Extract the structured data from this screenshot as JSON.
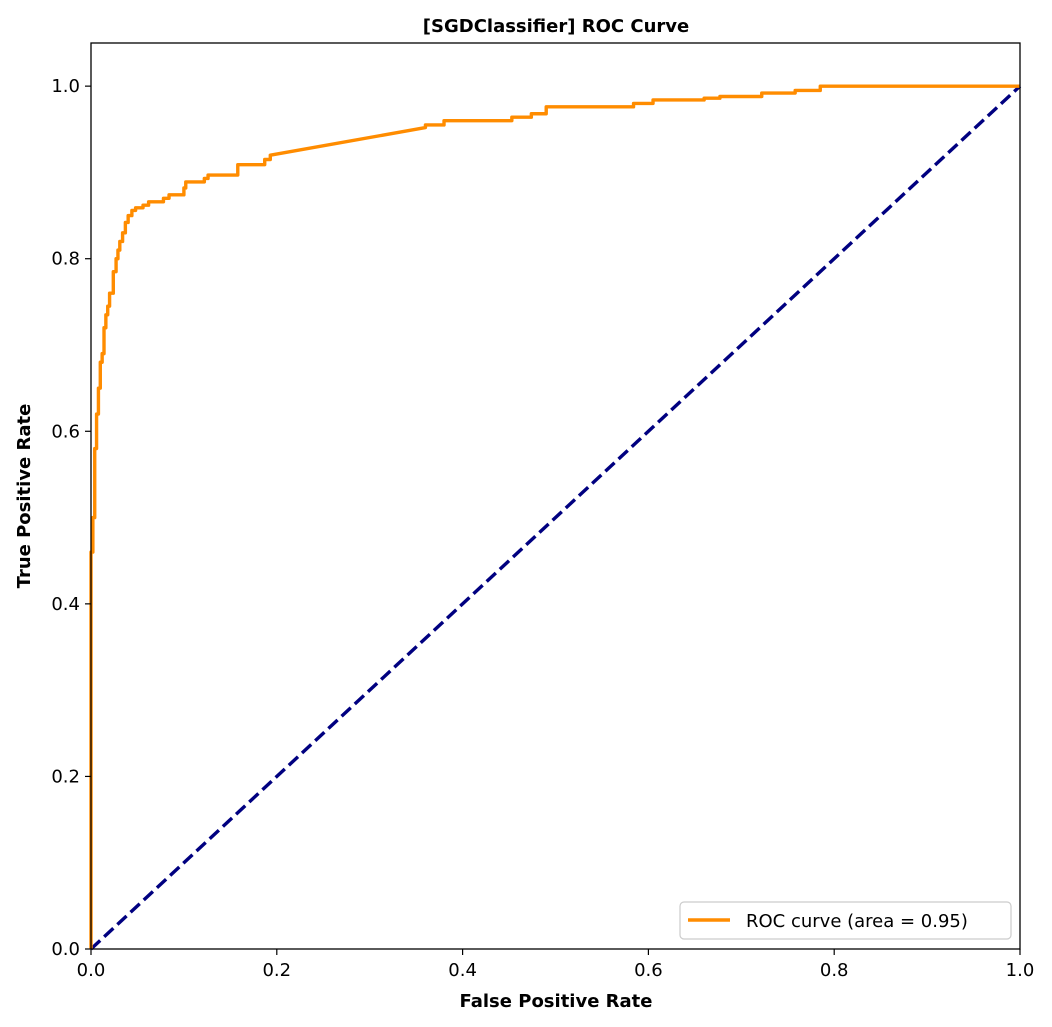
{
  "chart_data": {
    "type": "line",
    "title": "[SGDClassifier] ROC Curve",
    "xlabel": "False Positive Rate",
    "ylabel": "True Positive Rate",
    "xlim": [
      0.0,
      1.0
    ],
    "ylim": [
      0.0,
      1.05
    ],
    "x_ticks": [
      "0.0",
      "0.2",
      "0.4",
      "0.6",
      "0.8",
      "1.0"
    ],
    "y_ticks": [
      "0.0",
      "0.2",
      "0.4",
      "0.6",
      "0.8",
      "1.0"
    ],
    "grid": false,
    "legend_position": "lower-right",
    "series": [
      {
        "name": "ROC curve (area = 0.95)",
        "color": "#ff8c00",
        "style": "solid",
        "x": [
          0.0,
          0.0,
          0.002,
          0.002,
          0.004,
          0.004,
          0.006,
          0.006,
          0.008,
          0.008,
          0.01,
          0.01,
          0.012,
          0.012,
          0.014,
          0.014,
          0.016,
          0.016,
          0.018,
          0.018,
          0.02,
          0.02,
          0.024,
          0.024,
          0.027,
          0.027,
          0.029,
          0.029,
          0.031,
          0.031,
          0.034,
          0.034,
          0.037,
          0.037,
          0.04,
          0.04,
          0.044,
          0.044,
          0.048,
          0.048,
          0.056,
          0.056,
          0.062,
          0.062,
          0.078,
          0.078,
          0.084,
          0.084,
          0.1,
          0.1,
          0.102,
          0.102,
          0.122,
          0.122,
          0.126,
          0.126,
          0.158,
          0.158,
          0.187,
          0.187,
          0.193,
          0.193,
          0.36,
          0.36,
          0.38,
          0.38,
          0.453,
          0.453,
          0.474,
          0.474,
          0.49,
          0.49,
          0.584,
          0.584,
          0.605,
          0.605,
          0.66,
          0.66,
          0.677,
          0.677,
          0.722,
          0.722,
          0.758,
          0.758,
          0.785,
          0.785,
          1.0
        ],
        "y": [
          0.0,
          0.46,
          0.46,
          0.5,
          0.5,
          0.58,
          0.58,
          0.62,
          0.62,
          0.65,
          0.65,
          0.68,
          0.68,
          0.69,
          0.69,
          0.72,
          0.72,
          0.735,
          0.735,
          0.745,
          0.745,
          0.76,
          0.76,
          0.785,
          0.785,
          0.8,
          0.8,
          0.81,
          0.81,
          0.82,
          0.82,
          0.83,
          0.83,
          0.842,
          0.842,
          0.85,
          0.85,
          0.856,
          0.856,
          0.859,
          0.859,
          0.862,
          0.862,
          0.866,
          0.866,
          0.87,
          0.87,
          0.874,
          0.874,
          0.882,
          0.882,
          0.889,
          0.889,
          0.893,
          0.893,
          0.897,
          0.897,
          0.909,
          0.909,
          0.915,
          0.915,
          0.92,
          0.952,
          0.955,
          0.955,
          0.96,
          0.96,
          0.964,
          0.964,
          0.968,
          0.968,
          0.976,
          0.976,
          0.98,
          0.98,
          0.984,
          0.984,
          0.986,
          0.986,
          0.988,
          0.988,
          0.992,
          0.992,
          0.995,
          0.995,
          1.0,
          1.0
        ]
      },
      {
        "name": "",
        "color": "#000080",
        "style": "dashed",
        "x": [
          0.0,
          1.0
        ],
        "y": [
          0.0,
          1.0
        ]
      }
    ]
  }
}
